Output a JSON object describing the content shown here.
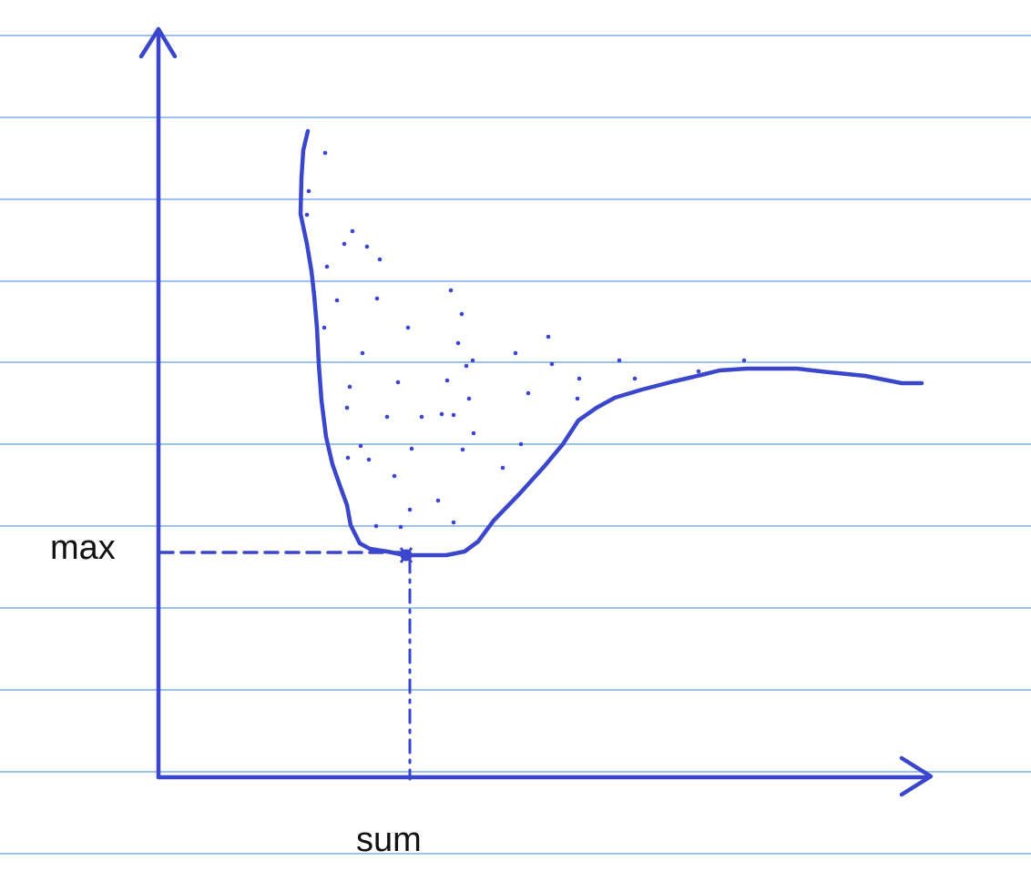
{
  "labels": {
    "y_marker": "max",
    "x_marker": "sum"
  },
  "colors": {
    "ruled_lines": "#7aaee8",
    "ink": "#3a46cc",
    "text": "#111111"
  },
  "icons": [
    "y-axis-arrowhead-icon",
    "x-axis-arrowhead-icon"
  ]
}
